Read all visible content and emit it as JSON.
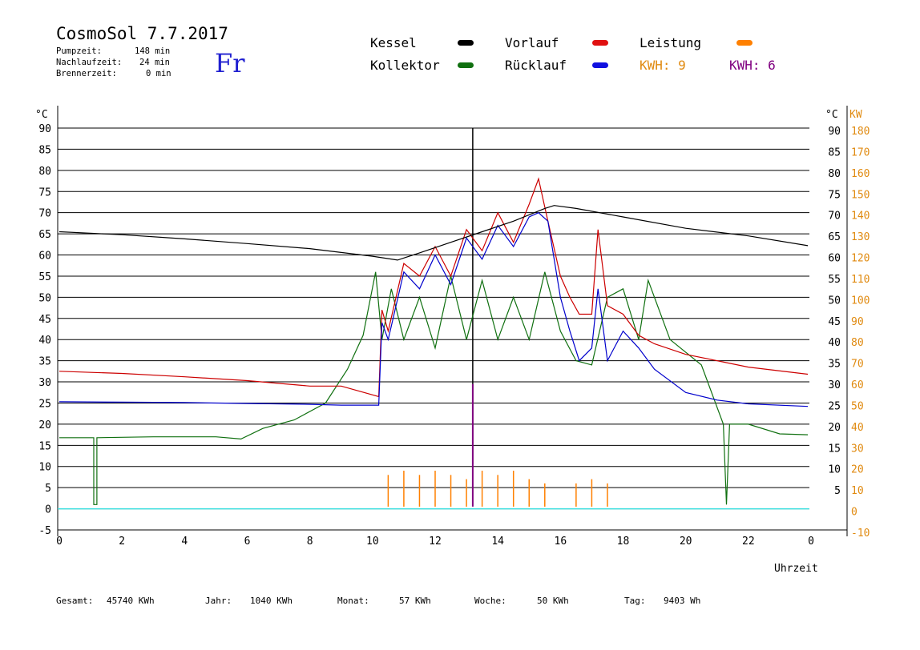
{
  "header": {
    "title": "CosmoSol 7.7.2017",
    "day": "Fr",
    "pump_label": "Pumpzeit:",
    "pump_value": "148 min",
    "afterrun_label": "Nachlaufzeit:",
    "afterrun_value": "24 min",
    "burner_label": "Brennerzeit:",
    "burner_value": "0 min"
  },
  "legend": {
    "kessel": "Kessel",
    "kollektor": "Kollektor",
    "vorlauf": "Vorlauf",
    "ruecklauf": "Rücklauf",
    "leistung": "Leistung",
    "kwh1": "KWH: 9",
    "kwh2": "KWH: 6"
  },
  "colors": {
    "kessel": "#000000",
    "kollektor": "#107010",
    "vorlauf": "#cc0000",
    "ruecklauf": "#0000cc",
    "leistung": "#ff8000",
    "purple": "#800080",
    "cyan": "#40e0e0"
  },
  "footer": {
    "gesamt_label": "Gesamt:",
    "gesamt_value": "45740 KWh",
    "jahr_label": "Jahr:",
    "jahr_value": "1040 KWh",
    "monat_label": "Monat:",
    "monat_value": "57 KWh",
    "woche_label": "Woche:",
    "woche_value": "50 KWh",
    "tag_label": "Tag:",
    "tag_value": "9403 Wh"
  },
  "chart_data": {
    "type": "line",
    "xlabel": "Uhrzeit",
    "ylabel_left": "°C",
    "ylabel_right_temp": "°C",
    "ylabel_right_power": "KW",
    "xlim": [
      0,
      24
    ],
    "ylim": [
      -5,
      90
    ],
    "x_ticks": [
      "0",
      "2",
      "4",
      "6",
      "8",
      "10",
      "12",
      "14",
      "16",
      "18",
      "20",
      "22",
      "0"
    ],
    "y_ticks_left": [
      "90",
      "85",
      "80",
      "75",
      "70",
      "65",
      "60",
      "55",
      "50",
      "45",
      "40",
      "35",
      "30",
      "25",
      "20",
      "15",
      "10",
      "5",
      "0",
      "-5"
    ],
    "y_ticks_right_temp": [
      "90",
      "85",
      "80",
      "75",
      "70",
      "65",
      "60",
      "55",
      "50",
      "45",
      "40",
      "35",
      "30",
      "25",
      "20",
      "15",
      "10",
      "5"
    ],
    "y_ticks_right_power": [
      "180",
      "170",
      "160",
      "150",
      "140",
      "130",
      "120",
      "110",
      "100",
      "90",
      "80",
      "70",
      "60",
      "50",
      "40",
      "30",
      "20",
      "10",
      "0",
      "-10"
    ],
    "series": [
      {
        "name": "Kessel",
        "color": "#000000",
        "x": [
          0,
          2,
          4,
          6,
          8,
          10,
          10.8,
          11.5,
          12.5,
          13.5,
          14.5,
          15.5,
          15.8,
          16.5,
          18,
          20,
          22,
          23.9
        ],
        "y": [
          65.5,
          64.8,
          63.8,
          62.7,
          61.5,
          59.7,
          58.8,
          60.5,
          63,
          65.5,
          68,
          71,
          71.7,
          71,
          69,
          66.3,
          64.5,
          62.2
        ]
      },
      {
        "name": "Vorlauf",
        "color": "#cc0000",
        "x": [
          0,
          2,
          4,
          6,
          8,
          9,
          10.2,
          10.3,
          10.5,
          11,
          11.5,
          12,
          12.5,
          13,
          13.5,
          14,
          14.5,
          15,
          15.3,
          15.6,
          16,
          16.3,
          16.6,
          17,
          17.2,
          17.5,
          18,
          18.5,
          19,
          20,
          21,
          22,
          23.9
        ],
        "y": [
          32.5,
          32,
          31.2,
          30.3,
          29,
          29,
          26.5,
          47,
          42,
          58,
          55,
          62,
          55,
          66,
          61,
          70,
          63,
          72,
          78,
          68,
          55,
          50,
          46,
          46,
          66,
          48,
          46,
          41,
          39,
          36.5,
          35,
          33.5,
          31.8
        ]
      },
      {
        "name": "Rücklauf",
        "color": "#0000cc",
        "x": [
          0,
          2,
          4,
          6,
          8,
          9,
          10.2,
          10.3,
          10.5,
          11,
          11.5,
          12,
          12.5,
          13,
          13.5,
          14,
          14.5,
          15,
          15.3,
          15.6,
          16,
          16.3,
          16.6,
          17,
          17.2,
          17.5,
          18,
          18.5,
          19,
          20,
          21,
          22,
          23.9
        ],
        "y": [
          25.3,
          25.2,
          25.1,
          24.9,
          24.7,
          24.5,
          24.5,
          44,
          40,
          56,
          52,
          60,
          53,
          64,
          59,
          67,
          62,
          69,
          70,
          68,
          50,
          42,
          35,
          38,
          52,
          35,
          42,
          38,
          33,
          27.5,
          25.7,
          24.8,
          24.2
        ]
      },
      {
        "name": "Kollektor",
        "color": "#107010",
        "x": [
          0,
          1.1,
          1.1,
          1.2,
          1.2,
          3,
          5,
          5.8,
          6.5,
          7.5,
          8.5,
          9.2,
          9.7,
          10.1,
          10.3,
          10.6,
          11,
          11.5,
          12,
          12.5,
          13,
          13.5,
          14,
          14.5,
          15,
          15.5,
          16,
          16.5,
          17,
          17.5,
          18,
          18.5,
          18.8,
          19.5,
          20.5,
          21.2,
          21.3,
          21.4,
          22,
          23,
          23.9
        ],
        "y": [
          16.8,
          16.8,
          1,
          1,
          16.8,
          17,
          17,
          16.5,
          19,
          21,
          25,
          33,
          41,
          56,
          40,
          52,
          40,
          50,
          38,
          55,
          40,
          54,
          40,
          50,
          40,
          56,
          42,
          35,
          34,
          50,
          52,
          40,
          54,
          40,
          34,
          20,
          1,
          20,
          20,
          17.7,
          17.5
        ]
      },
      {
        "name": "Leistung",
        "color": "#ff8000",
        "x": [
          10.5,
          11,
          11.5,
          12,
          12.5,
          13,
          13.5,
          14,
          14.5,
          15,
          15.5,
          16.5,
          17,
          17.5
        ],
        "y": [
          8,
          9,
          8,
          9,
          8,
          7,
          9,
          8,
          9,
          7,
          6,
          6,
          7,
          6
        ]
      }
    ],
    "annotations": []
  }
}
